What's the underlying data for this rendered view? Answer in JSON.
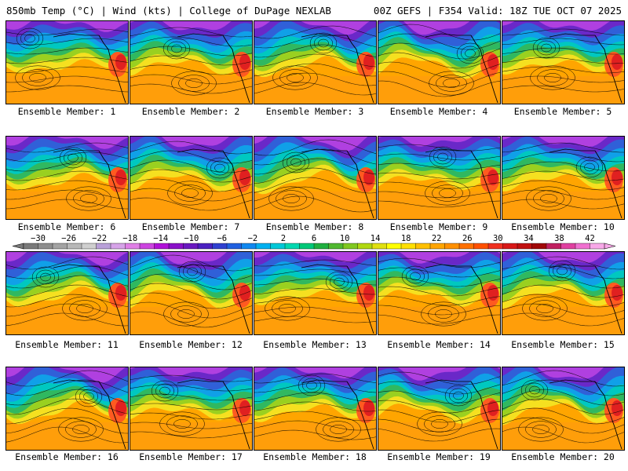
{
  "header": {
    "left": "850mb Temp (°C) | Wind (kts) | College of DuPage NEXLAB",
    "right": "00Z GEFS | F354 Valid: 18Z TUE OCT 07 2025"
  },
  "members": [
    {
      "label": "Ensemble Member: 1"
    },
    {
      "label": "Ensemble Member: 2"
    },
    {
      "label": "Ensemble Member: 3"
    },
    {
      "label": "Ensemble Member: 4"
    },
    {
      "label": "Ensemble Member: 5"
    },
    {
      "label": "Ensemble Member: 6"
    },
    {
      "label": "Ensemble Member: 7"
    },
    {
      "label": "Ensemble Member: 8"
    },
    {
      "label": "Ensemble Member: 9"
    },
    {
      "label": "Ensemble Member: 10"
    },
    {
      "label": "Ensemble Member: 11"
    },
    {
      "label": "Ensemble Member: 12"
    },
    {
      "label": "Ensemble Member: 13"
    },
    {
      "label": "Ensemble Member: 14"
    },
    {
      "label": "Ensemble Member: 15"
    },
    {
      "label": "Ensemble Member: 16"
    },
    {
      "label": "Ensemble Member: 17"
    },
    {
      "label": "Ensemble Member: 18"
    },
    {
      "label": "Ensemble Member: 19"
    },
    {
      "label": "Ensemble Member: 20"
    }
  ],
  "colorbar": {
    "labels": [
      "−30",
      "−26",
      "−22",
      "−18",
      "−14",
      "−10",
      "−6",
      "−2",
      "2",
      "6",
      "10",
      "14",
      "18",
      "22",
      "26",
      "30",
      "34",
      "38",
      "42"
    ],
    "colors": [
      "#7a7a7a",
      "#8e8e8e",
      "#a3a3a3",
      "#b8b8b8",
      "#cfcfcf",
      "#b9a0d9",
      "#d6a3e8",
      "#e07fe6",
      "#cc44e0",
      "#b010d8",
      "#8a10c8",
      "#6a18c0",
      "#4a20c0",
      "#3040d0",
      "#2060e0",
      "#1088f0",
      "#00b0f0",
      "#00c8d8",
      "#00d8b0",
      "#00c878",
      "#20b040",
      "#50b830",
      "#80c820",
      "#b0d810",
      "#e0e010",
      "#ffff00",
      "#ffe000",
      "#ffc000",
      "#ffa500",
      "#ff9000",
      "#ff7000",
      "#ff5000",
      "#f03020",
      "#d81818",
      "#c01010",
      "#a00808",
      "#c02060",
      "#e040a0",
      "#f070d0",
      "#f8a8e8"
    ]
  }
}
